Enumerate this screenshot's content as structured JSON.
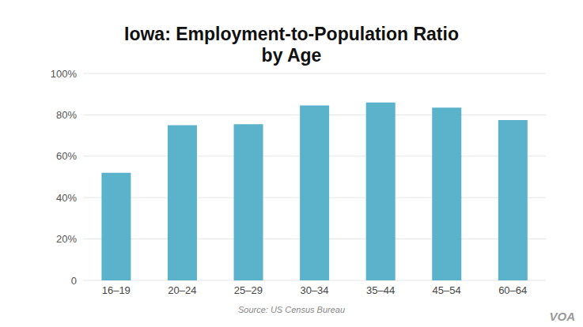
{
  "chart_data": {
    "type": "bar",
    "title": "Iowa: Employment-to-Population Ratio\nby Age",
    "source": "Source: US Census Bureau",
    "logo": "VOA",
    "categories": [
      "16–19",
      "20–24",
      "25–29",
      "30–34",
      "35–44",
      "45–54",
      "60–64"
    ],
    "values": [
      52,
      75,
      75.5,
      84.5,
      86,
      83.5,
      77.5
    ],
    "color": "#5ab3cb",
    "ylim": [
      0,
      100
    ],
    "yticks": [
      0,
      {
        "value": 20,
        "label": "20%"
      },
      {
        "value": 40,
        "label": "40%"
      },
      {
        "value": 60,
        "label": "60%"
      },
      {
        "value": 80,
        "label": "80%"
      },
      {
        "value": 100,
        "label": "100%"
      }
    ],
    "grid": true
  }
}
